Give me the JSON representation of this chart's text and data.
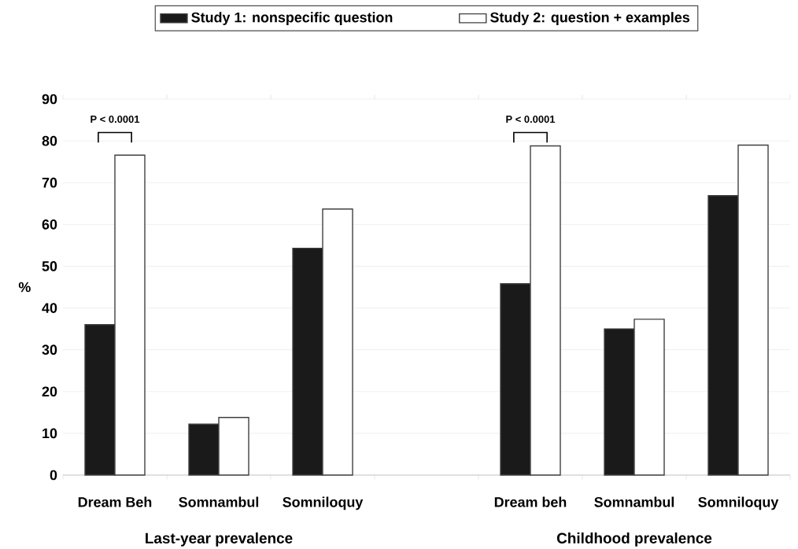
{
  "chart_data": {
    "type": "bar",
    "ylabel": "%",
    "categories": [
      "Dream Beh",
      "Somnambul",
      "Somniloquy",
      null,
      "Dream beh",
      "Somnambul",
      "Somniloquy"
    ],
    "series": [
      {
        "name": "Study 1: nonspecific question",
        "color": "#1a1a1a",
        "values": [
          36,
          12.2,
          54.3,
          null,
          45.8,
          35,
          66.9
        ]
      },
      {
        "name": "Study 2: question + examples",
        "color": "#ffffff",
        "values": [
          76.6,
          13.8,
          63.7,
          null,
          78.8,
          37.3,
          79
        ]
      }
    ],
    "ylim": [
      0,
      90
    ],
    "yticks": [
      0,
      10,
      20,
      30,
      40,
      50,
      60,
      70,
      80,
      90
    ],
    "grid": "y",
    "legend": "top",
    "annotations": [
      "P < 0.0001",
      "P < 0.0001",
      "Last-year prevalence",
      "Childhood prevalence"
    ]
  }
}
